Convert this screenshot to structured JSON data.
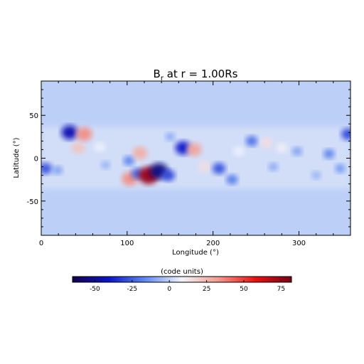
{
  "chart_data": {
    "type": "heatmap",
    "title": "B",
    "title_subscript": "r",
    "title_suffix": " at r = 1.00Rs",
    "xlabel": "Longitude (°)",
    "ylabel": "Latitude (°)",
    "xlim": [
      0,
      360
    ],
    "ylim": [
      -90,
      90
    ],
    "xticks": [
      0,
      100,
      200,
      300
    ],
    "yticks": [
      -50,
      0,
      50
    ],
    "background_value": -4,
    "colorbar": {
      "label": "(code units)",
      "range": [
        -65,
        82
      ],
      "ticks": [
        -50,
        -25,
        0,
        25,
        50,
        75
      ],
      "colors": [
        "#14004b",
        "#0a14cc",
        "#5f8bf0",
        "#f2f5fc",
        "#f29a8e",
        "#ee1111",
        "#780016"
      ]
    },
    "features": [
      {
        "lon": 33,
        "lat": 30,
        "value": -45
      },
      {
        "lon": 50,
        "lat": 28,
        "value": 35
      },
      {
        "lon": 43,
        "lat": 12,
        "value": 22
      },
      {
        "lon": 68,
        "lat": 13,
        "value": 8
      },
      {
        "lon": 5,
        "lat": -12,
        "value": -28
      },
      {
        "lon": 19,
        "lat": -14,
        "value": -12
      },
      {
        "lon": 102,
        "lat": -3,
        "value": -18
      },
      {
        "lon": 115,
        "lat": 6,
        "value": 28
      },
      {
        "lon": 103,
        "lat": -24,
        "value": 35
      },
      {
        "lon": 112,
        "lat": -18,
        "value": -25
      },
      {
        "lon": 125,
        "lat": -20,
        "value": 75
      },
      {
        "lon": 137,
        "lat": -15,
        "value": -55
      },
      {
        "lon": 148,
        "lat": -20,
        "value": -30
      },
      {
        "lon": 165,
        "lat": 12,
        "value": -40
      },
      {
        "lon": 178,
        "lat": 10,
        "value": 30
      },
      {
        "lon": 190,
        "lat": -10,
        "value": 15
      },
      {
        "lon": 207,
        "lat": -12,
        "value": -28
      },
      {
        "lon": 222,
        "lat": -25,
        "value": -20
      },
      {
        "lon": 245,
        "lat": 20,
        "value": -22
      },
      {
        "lon": 262,
        "lat": 18,
        "value": 15
      },
      {
        "lon": 280,
        "lat": 12,
        "value": 10
      },
      {
        "lon": 298,
        "lat": 8,
        "value": -12
      },
      {
        "lon": 335,
        "lat": 5,
        "value": -18
      },
      {
        "lon": 348,
        "lat": -12,
        "value": -14
      },
      {
        "lon": 357,
        "lat": 28,
        "value": -30
      },
      {
        "lon": 270,
        "lat": -10,
        "value": -10
      },
      {
        "lon": 75,
        "lat": -8,
        "value": -8
      },
      {
        "lon": 150,
        "lat": 25,
        "value": -10
      },
      {
        "lon": 230,
        "lat": 8,
        "value": 8
      },
      {
        "lon": 320,
        "lat": -20,
        "value": -8
      }
    ]
  }
}
